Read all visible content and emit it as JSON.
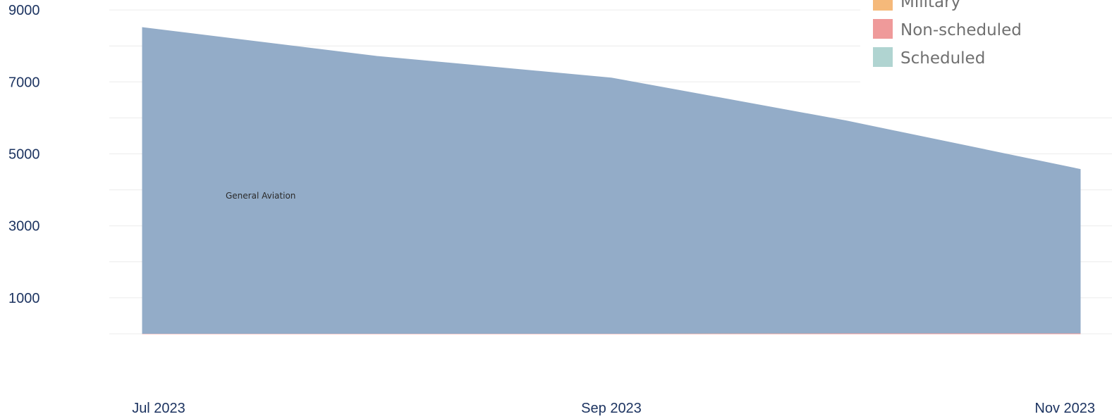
{
  "chart_data": {
    "type": "area",
    "stacked": true,
    "x": [
      "2023-07",
      "2023-08",
      "2023-09",
      "2023-10",
      "2023-11"
    ],
    "x_tick_labels": [
      "Jul 2023",
      "Sep 2023",
      "Nov 2023"
    ],
    "y_tick_labels": [
      "1000",
      "3000",
      "5000",
      "7000",
      "9000"
    ],
    "ylim": [
      0,
      9000
    ],
    "grid": true,
    "legend_position": "top-right",
    "series": [
      {
        "name": "Scheduled",
        "color": "#b0d4d1",
        "values": [
          0,
          0,
          0,
          0,
          0
        ]
      },
      {
        "name": "Non-scheduled",
        "color": "#ef9a9a",
        "values": [
          10,
          10,
          10,
          20,
          20
        ]
      },
      {
        "name": "Military",
        "color": "#f5b97a",
        "values": [
          0,
          0,
          0,
          0,
          0
        ]
      },
      {
        "name": "General Aviation",
        "color": "#93acc8",
        "values": [
          8500,
          7700,
          7100,
          5900,
          4550
        ]
      }
    ],
    "area_label": "General Aviation",
    "title": "",
    "xlabel": "",
    "ylabel": ""
  }
}
